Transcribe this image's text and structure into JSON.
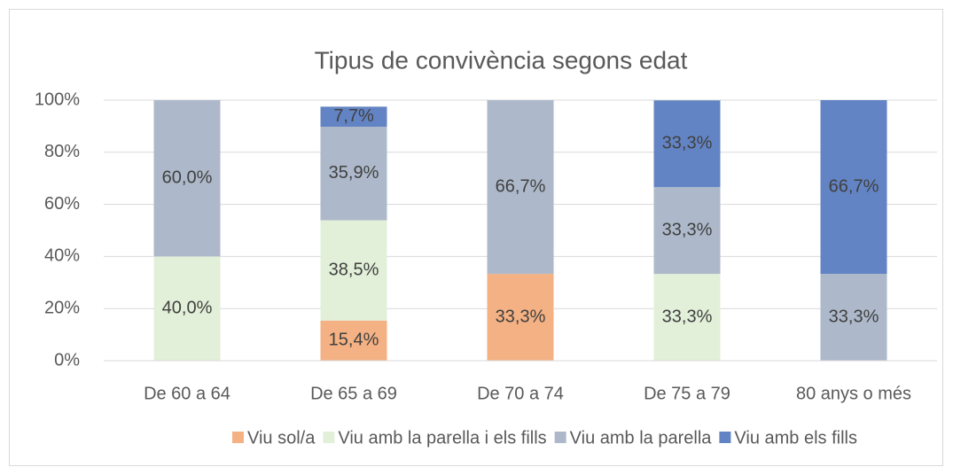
{
  "chart_data": {
    "type": "stacked_bar",
    "title": "Tipus de convivència segons edat",
    "categories": [
      "De 60 a 64",
      "De 65 a 69",
      "De 70 a 74",
      "De 75 a 79",
      "80 anys o més"
    ],
    "series": [
      {
        "name": "Viu sol/a",
        "color": "#f4b183",
        "values": [
          null,
          15.4,
          33.3,
          null,
          null
        ],
        "value_labels": [
          null,
          "15,4%",
          "33,3%",
          null,
          null
        ]
      },
      {
        "name": "Viu amb la parella i els fills",
        "color": "#e2f0d9",
        "values": [
          40.0,
          38.5,
          null,
          33.3,
          null
        ],
        "value_labels": [
          "40,0%",
          "38,5%",
          null,
          "33,3%",
          null
        ]
      },
      {
        "name": "Viu amb la parella",
        "color": "#adb9ca",
        "values": [
          60.0,
          35.9,
          66.7,
          33.3,
          33.3
        ],
        "value_labels": [
          "60,0%",
          "35,9%",
          "66,7%",
          "33,3%",
          "33,3%"
        ]
      },
      {
        "name": "Viu amb els fills",
        "color": "#6384c4",
        "values": [
          null,
          7.7,
          null,
          33.3,
          66.7
        ],
        "value_labels": [
          null,
          "7,7%",
          null,
          "33,3%",
          "66,7%"
        ]
      }
    ],
    "ylim": [
      0,
      100
    ],
    "yticks": [
      {
        "value": 0,
        "label": "0%"
      },
      {
        "value": 20,
        "label": "20%"
      },
      {
        "value": 40,
        "label": "40%"
      },
      {
        "value": 60,
        "label": "60%"
      },
      {
        "value": 80,
        "label": "80%"
      },
      {
        "value": 100,
        "label": "100%"
      }
    ],
    "grid": true,
    "legend": "bottom"
  }
}
